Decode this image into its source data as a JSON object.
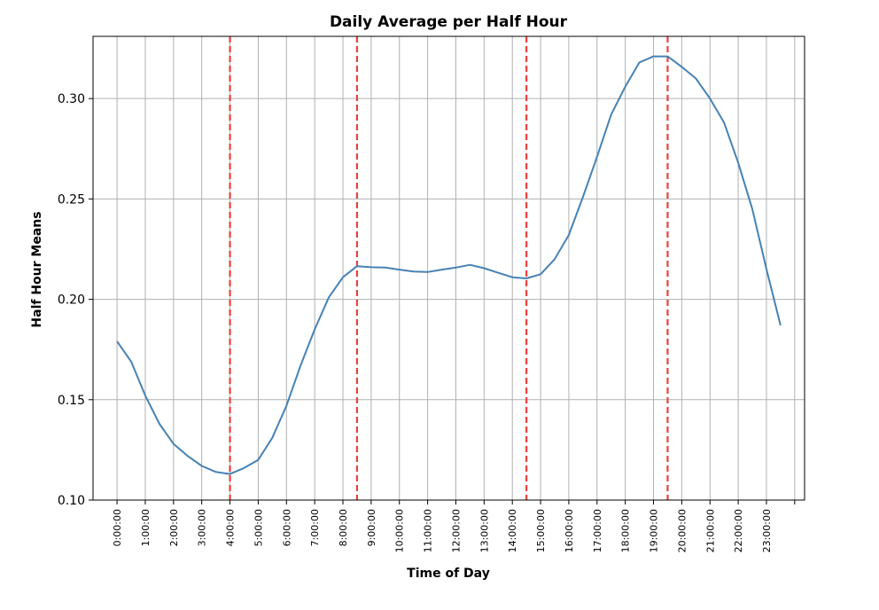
{
  "chart_data": {
    "type": "line",
    "title": "Daily Average per Half Hour",
    "xlabel": "Time of Day",
    "ylabel": "Half Hour Means",
    "ylim": [
      0.1,
      0.331
    ],
    "xlim": [
      -0.85,
      24.35
    ],
    "x_tick_labels": [
      "0:00:00",
      "1:00:00",
      "2:00:00",
      "3:00:00",
      "4:00:00",
      "5:00:00",
      "6:00:00",
      "7:00:00",
      "8:00:00",
      "9:00:00",
      "10:00:00",
      "11:00:00",
      "12:00:00",
      "13:00:00",
      "14:00:00",
      "15:00:00",
      "16:00:00",
      "17:00:00",
      "18:00:00",
      "19:00:00",
      "20:00:00",
      "21:00:00",
      "22:00:00",
      "23:00:00"
    ],
    "x_ticks": [
      0,
      1,
      2,
      3,
      4,
      5,
      6,
      7,
      8,
      9,
      10,
      11,
      12,
      13,
      14,
      15,
      16,
      17,
      18,
      19,
      20,
      21,
      22,
      23
    ],
    "extra_grid_x": [
      24
    ],
    "y_ticks": [
      0.1,
      0.15,
      0.2,
      0.25,
      0.3
    ],
    "y_tick_labels": [
      "0.10",
      "0.15",
      "0.20",
      "0.25",
      "0.30"
    ],
    "grid": true,
    "line_color": "#4682b4",
    "vline_color": "#e8413c",
    "vlines": [
      4.0,
      8.5,
      14.5,
      19.5
    ],
    "series": [
      {
        "x": [
          0,
          0.5,
          1,
          1.5,
          2,
          2.5,
          3,
          3.5,
          4,
          4.5,
          5,
          5.5,
          6,
          6.5,
          7,
          7.5,
          8,
          8.5,
          9,
          9.5,
          10,
          10.5,
          11,
          11.5,
          12,
          12.5,
          13,
          13.5,
          14,
          14.5,
          15,
          15.5,
          16,
          16.5,
          17,
          17.5,
          18,
          18.5,
          19,
          19.5,
          20,
          20.5,
          21,
          21.5,
          22,
          22.5,
          23,
          23.5
        ],
        "values": [
          0.179,
          0.169,
          0.152,
          0.138,
          0.128,
          0.122,
          0.117,
          0.114,
          0.113,
          0.116,
          0.12,
          0.131,
          0.147,
          0.167,
          0.185,
          0.201,
          0.211,
          0.2165,
          0.216,
          0.2158,
          0.2148,
          0.2138,
          0.2136,
          0.2148,
          0.2158,
          0.2172,
          0.2155,
          0.2132,
          0.211,
          0.2104,
          0.2125,
          0.22,
          0.232,
          0.251,
          0.271,
          0.292,
          0.306,
          0.318,
          0.321,
          0.321,
          0.3158,
          0.31,
          0.3,
          0.288,
          0.268,
          0.245,
          0.215,
          0.187
        ]
      }
    ]
  }
}
